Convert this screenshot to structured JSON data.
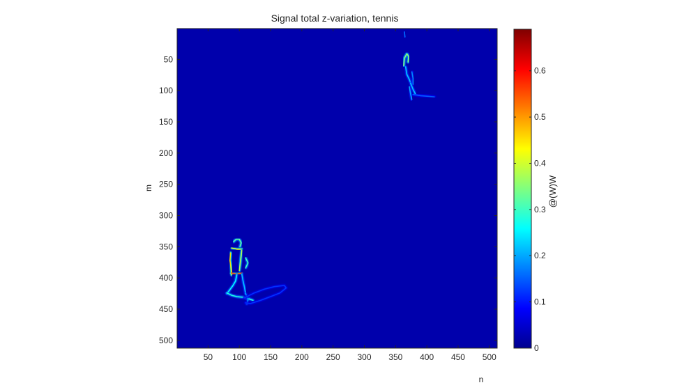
{
  "chart_data": {
    "type": "heatmap",
    "title": "Signal total z-variation, tennis",
    "xlabel": "n",
    "ylabel": "m",
    "xlim": [
      0.5,
      512.5
    ],
    "ylim": [
      0.5,
      512.5
    ],
    "y_direction": "reversed",
    "xticks": [
      50,
      100,
      150,
      200,
      250,
      300,
      350,
      400,
      450,
      500
    ],
    "yticks": [
      50,
      100,
      150,
      200,
      250,
      300,
      350,
      400,
      450,
      500
    ],
    "grid": false,
    "colormap": "jet",
    "background_value": 0.03,
    "colorbar": {
      "label": "@(W)W",
      "range": [
        0,
        0.69
      ],
      "ticks": [
        0,
        0.1,
        0.2,
        0.3,
        0.4,
        0.5,
        0.6
      ]
    },
    "features": [
      {
        "name": "lower-left player",
        "strokes": [
          {
            "v": 0.32,
            "pts": [
              [
                91,
                342
              ],
              [
                95,
                338
              ],
              [
                100,
                338
              ],
              [
                103,
                344
              ],
              [
                101,
                350
              ]
            ]
          },
          {
            "v": 0.42,
            "pts": [
              [
                88,
                352
              ],
              [
                96,
                354
              ],
              [
                104,
                354
              ]
            ]
          },
          {
            "v": 0.45,
            "pts": [
              [
                86,
                360
              ],
              [
                85,
                372
              ],
              [
                87,
                386
              ],
              [
                88,
                395
              ]
            ]
          },
          {
            "v": 0.38,
            "pts": [
              [
                104,
                356
              ],
              [
                102,
                372
              ],
              [
                100,
                388
              ]
            ]
          },
          {
            "v": 0.55,
            "pts": [
              [
                87,
                392
              ],
              [
                96,
                394
              ],
              [
                104,
                392
              ]
            ]
          },
          {
            "v": 0.3,
            "pts": [
              [
                110,
                368
              ],
              [
                114,
                376
              ],
              [
                110,
                384
              ]
            ]
          },
          {
            "v": 0.26,
            "pts": [
              [
                96,
                395
              ],
              [
                94,
                405
              ],
              [
                90,
                412
              ],
              [
                84,
                420
              ],
              [
                80,
                425
              ]
            ]
          },
          {
            "v": 0.22,
            "pts": [
              [
                104,
                394
              ],
              [
                106,
                405
              ],
              [
                108,
                414
              ],
              [
                110,
                425
              ]
            ]
          },
          {
            "v": 0.28,
            "pts": [
              [
                80,
                424
              ],
              [
                88,
                428
              ],
              [
                96,
                430
              ],
              [
                106,
                431
              ],
              [
                114,
                433
              ],
              [
                122,
                436
              ]
            ]
          },
          {
            "v": 0.2,
            "pts": [
              [
                110,
                425
              ],
              [
                114,
                435
              ],
              [
                112,
                442
              ]
            ]
          },
          {
            "v": 0.12,
            "pts": [
              [
                108,
                432
              ],
              [
                124,
                424
              ],
              [
                140,
                418
              ],
              [
                156,
                414
              ],
              [
                172,
                412
              ],
              [
                175,
                416
              ],
              [
                165,
                424
              ],
              [
                150,
                430
              ],
              [
                134,
                436
              ],
              [
                118,
                441
              ],
              [
                110,
                440
              ]
            ]
          }
        ]
      },
      {
        "name": "upper-right player",
        "strokes": [
          {
            "v": 0.16,
            "pts": [
              [
                364,
                6
              ],
              [
                365,
                14
              ]
            ]
          },
          {
            "v": 0.35,
            "pts": [
              [
                363,
                60
              ],
              [
                364,
                48
              ],
              [
                368,
                41
              ],
              [
                371,
                45
              ],
              [
                370,
                54
              ]
            ]
          },
          {
            "v": 0.22,
            "pts": [
              [
                366,
                62
              ],
              [
                368,
                74
              ],
              [
                372,
                82
              ],
              [
                375,
                90
              ]
            ]
          },
          {
            "v": 0.18,
            "pts": [
              [
                376,
                70
              ],
              [
                378,
                80
              ],
              [
                378,
                90
              ]
            ]
          },
          {
            "v": 0.22,
            "pts": [
              [
                374,
                88
              ],
              [
                378,
                98
              ],
              [
                382,
                106
              ]
            ]
          },
          {
            "v": 0.2,
            "pts": [
              [
                372,
                94
              ],
              [
                374,
                105
              ],
              [
                376,
                114
              ]
            ]
          },
          {
            "v": 0.15,
            "pts": [
              [
                378,
                106
              ],
              [
                390,
                108
              ],
              [
                402,
                109
              ],
              [
                412,
                110
              ]
            ]
          }
        ]
      }
    ]
  }
}
